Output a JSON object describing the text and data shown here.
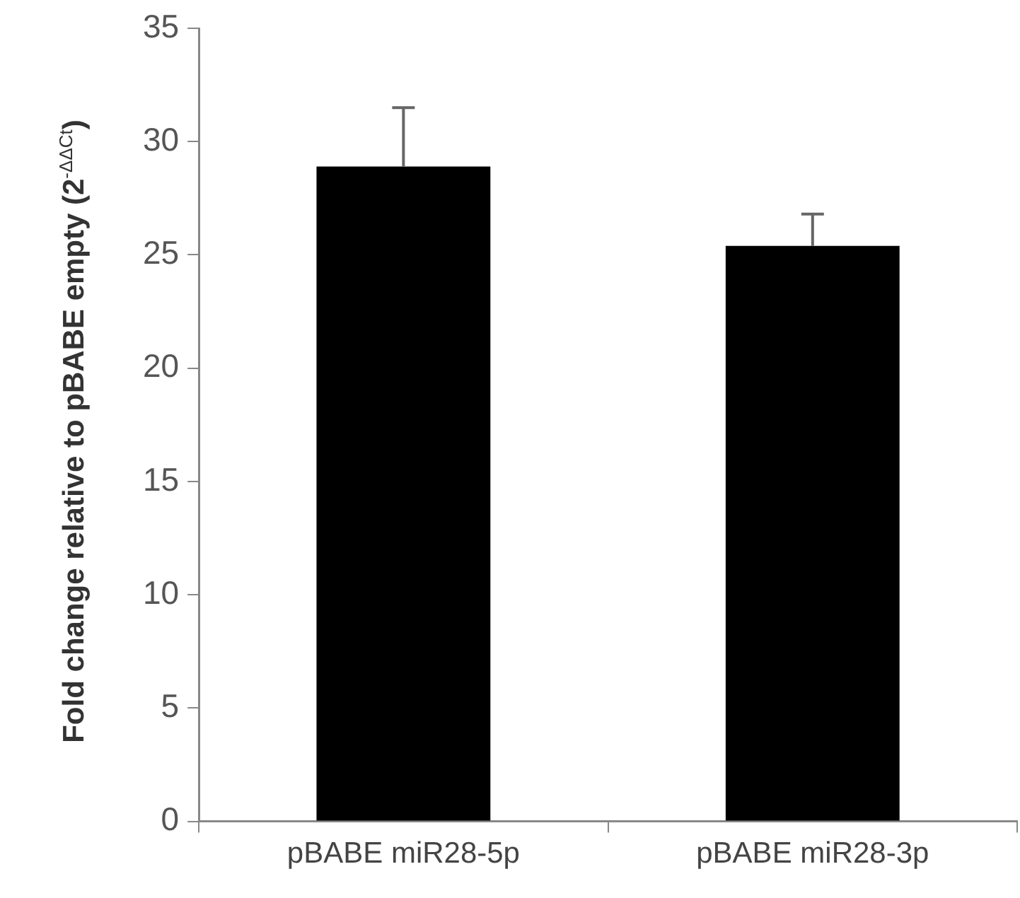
{
  "chart_data": {
    "type": "bar",
    "ylabel": "Fold change relative to pBABE empty (2$^{-ΔΔCt}$)",
    "categories": [
      "pBABE miR28-5p",
      "pBABE miR28-3p"
    ],
    "values": [
      28.9,
      25.4
    ],
    "color": "#000000",
    "errors": [
      [
        28.9,
        31.5
      ],
      [
        25.4,
        26.8
      ]
    ],
    "ylim": [
      0,
      35
    ],
    "yticks": [
      0,
      5,
      10,
      15,
      20,
      25,
      30,
      35
    ],
    "grid": false,
    "legend": false
  }
}
